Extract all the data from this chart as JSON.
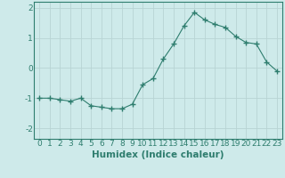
{
  "x": [
    0,
    1,
    2,
    3,
    4,
    5,
    6,
    7,
    8,
    9,
    10,
    11,
    12,
    13,
    14,
    15,
    16,
    17,
    18,
    19,
    20,
    21,
    22,
    23
  ],
  "y": [
    -1.0,
    -1.0,
    -1.05,
    -1.1,
    -1.0,
    -1.25,
    -1.3,
    -1.35,
    -1.35,
    -1.2,
    -0.55,
    -0.35,
    0.3,
    0.8,
    1.4,
    1.85,
    1.6,
    1.45,
    1.35,
    1.05,
    0.85,
    0.8,
    0.2,
    -0.1
  ],
  "line_color": "#2e7d6e",
  "marker": "+",
  "marker_size": 4,
  "bg_color": "#ceeaea",
  "grid_color": "#b8d4d4",
  "axis_color": "#2e7d6e",
  "xlabel": "Humidex (Indice chaleur)",
  "xlabel_fontsize": 7.5,
  "ylim": [
    -2.35,
    2.2
  ],
  "xlim": [
    -0.5,
    23.5
  ],
  "yticks": [
    -2,
    -1,
    0,
    1,
    2
  ],
  "xticks": [
    0,
    1,
    2,
    3,
    4,
    5,
    6,
    7,
    8,
    9,
    10,
    11,
    12,
    13,
    14,
    15,
    16,
    17,
    18,
    19,
    20,
    21,
    22,
    23
  ],
  "tick_fontsize": 6.5
}
